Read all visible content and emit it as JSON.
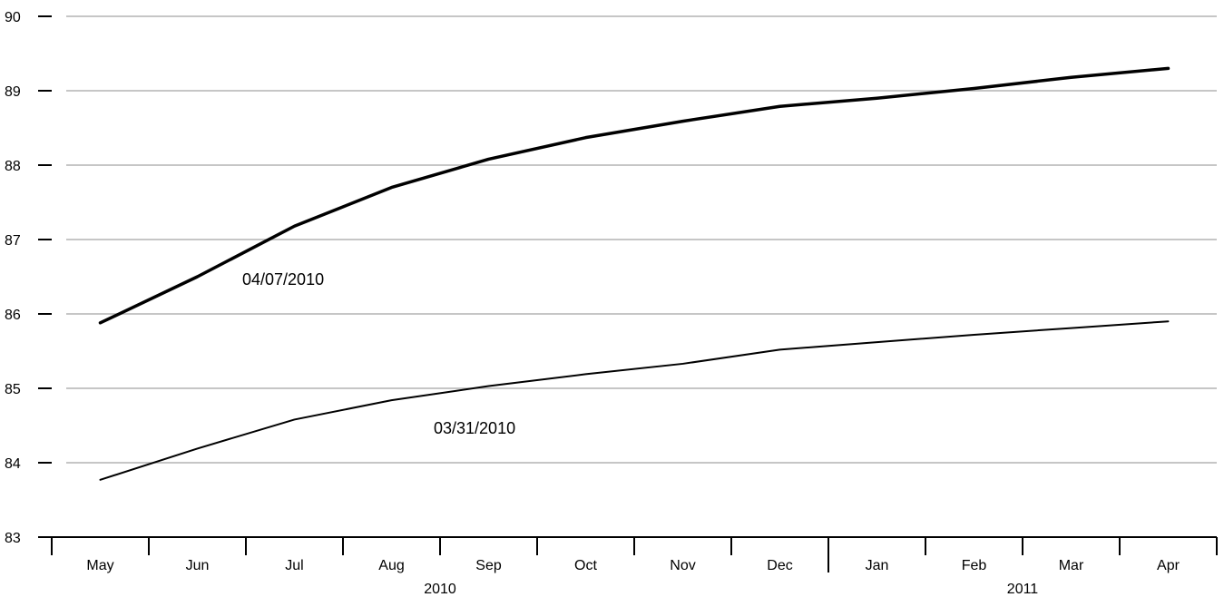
{
  "chart_data": {
    "type": "line",
    "title": "",
    "xlabel": "",
    "ylabel": "",
    "ylim": [
      83,
      90
    ],
    "yticks": [
      "83",
      "84",
      "85",
      "86",
      "87",
      "88",
      "89",
      "90"
    ],
    "categories": [
      "May",
      "Jun",
      "Jul",
      "Aug",
      "Sep",
      "Oct",
      "Nov",
      "Dec",
      "Jan",
      "Feb",
      "Mar",
      "Apr"
    ],
    "year_labels": [
      "2010",
      "2011"
    ],
    "grid": true,
    "series": [
      {
        "name": "04/07/2010",
        "values": [
          85.88,
          86.5,
          87.18,
          87.7,
          88.08,
          88.37,
          88.59,
          88.79,
          88.9,
          89.03,
          89.18,
          89.3
        ]
      },
      {
        "name": "03/31/2010",
        "values": [
          83.77,
          84.19,
          84.58,
          84.84,
          85.03,
          85.19,
          85.33,
          85.52,
          85.62,
          85.72,
          85.81,
          85.9
        ]
      }
    ]
  }
}
